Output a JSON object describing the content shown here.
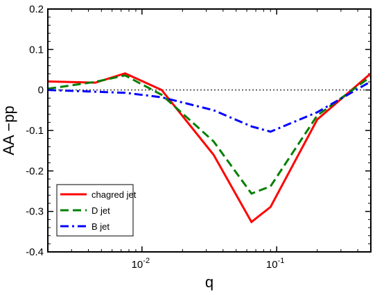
{
  "chart_data": {
    "type": "line",
    "xlabel": "q",
    "ylabel": "AA −pp",
    "xscale": "log",
    "xlim": [
      0.002,
      0.5
    ],
    "ylim": [
      -0.4,
      0.2
    ],
    "yticks": [
      {
        "value": 0.2,
        "label": "0.2"
      },
      {
        "value": 0.1,
        "label": "0.1"
      },
      {
        "value": 0.0,
        "label": "0"
      },
      {
        "value": -0.1,
        "label": "-0.1"
      },
      {
        "value": -0.2,
        "label": "-0.2"
      },
      {
        "value": -0.3,
        "label": "-0.3"
      },
      {
        "value": -0.4,
        "label": "-0.4"
      }
    ],
    "xticks": [
      {
        "value": 0.01,
        "base": "10",
        "exp": "-2"
      },
      {
        "value": 0.1,
        "base": "10",
        "exp": "-1"
      }
    ],
    "grid": false,
    "reference_line": {
      "y": 0,
      "style": "dotted",
      "color": "#000000"
    },
    "legend": {
      "position": "bottom-left",
      "boxed": true
    },
    "series": [
      {
        "name": "chagred jet",
        "color": "#ff0000",
        "style": "solid",
        "x": [
          0.002,
          0.0045,
          0.0075,
          0.014,
          0.034,
          0.065,
          0.09,
          0.2,
          0.5
        ],
        "y": [
          0.021,
          0.018,
          0.041,
          0.0,
          -0.16,
          -0.326,
          -0.289,
          -0.073,
          0.041
        ]
      },
      {
        "name": "D jet",
        "color": "#008000",
        "style": "dashed",
        "x": [
          0.002,
          0.0045,
          0.0075,
          0.014,
          0.034,
          0.065,
          0.09,
          0.2,
          0.5
        ],
        "y": [
          0.003,
          0.02,
          0.036,
          -0.012,
          -0.127,
          -0.256,
          -0.238,
          -0.063,
          0.033
        ]
      },
      {
        "name": "B jet",
        "color": "#0000ff",
        "style": "dashdot",
        "x": [
          0.002,
          0.0075,
          0.014,
          0.034,
          0.065,
          0.09,
          0.2,
          0.5
        ],
        "y": [
          0.0,
          -0.007,
          -0.018,
          -0.05,
          -0.09,
          -0.103,
          -0.055,
          0.021
        ]
      }
    ]
  }
}
